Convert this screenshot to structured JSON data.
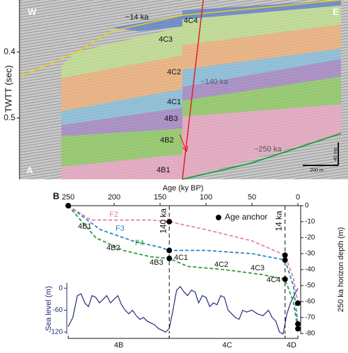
{
  "panel_a": {
    "label": "A",
    "west": "W",
    "east": "E",
    "y_label": "TWTT (sec)",
    "ylim": [
      0.321,
      0.593
    ],
    "yticks": [
      0.4,
      0.5
    ],
    "horizons": [
      "~14 ka",
      "~140 ka",
      "~250 ka"
    ],
    "units": [
      "4C4",
      "4C3",
      "4C2",
      "4C1",
      "4B3",
      "4B2",
      "4B1"
    ],
    "scale_bars": [
      "40 ms",
      "200 m"
    ]
  },
  "chart_data": {
    "type": "line",
    "label": "B",
    "x_label": "Age (ky BP)",
    "xlim": [
      250,
      0
    ],
    "xticks": [
      250,
      200,
      150,
      100,
      50,
      0
    ],
    "y_label": "250 ka horizon depth (m)",
    "ylim": [
      -80,
      0
    ],
    "yticks": [
      0,
      -10,
      -20,
      -30,
      -40,
      -50,
      -60,
      -70,
      -80
    ],
    "y2_label": "Sea level (m)",
    "y2lim": [
      -125,
      15
    ],
    "y2ticks": [
      0,
      -60,
      -120
    ],
    "series": [
      {
        "name": "F2",
        "color": "#ea7fae",
        "dashed": true,
        "x": [
          250,
          225,
          200,
          160,
          140,
          100,
          50,
          14,
          5,
          0
        ],
        "values": [
          0,
          -9,
          -9,
          -9,
          -10,
          -15,
          -22,
          -31,
          -45,
          -61
        ]
      },
      {
        "name": "F3",
        "color": "#2a86c0",
        "dashed": true,
        "x": [
          250,
          215,
          180,
          150,
          140,
          100,
          50,
          14,
          5,
          0
        ],
        "values": [
          0,
          -15,
          -22,
          -26,
          -28,
          -28,
          -30,
          -34,
          -50,
          -74
        ]
      },
      {
        "name": "F4",
        "color": "#2f9a45",
        "dashed": true,
        "x": [
          250,
          220,
          190,
          160,
          140,
          120,
          80,
          40,
          14,
          5,
          0
        ],
        "values": [
          0,
          -20,
          -28,
          -32,
          -33,
          -38,
          -40,
          -43,
          -46,
          -60,
          -77
        ]
      },
      {
        "name": "Age anchor",
        "color": "#000000",
        "markers": true,
        "x": [
          250,
          140,
          140,
          140,
          14,
          14,
          14,
          0,
          0,
          0
        ],
        "values": [
          0,
          -10,
          -28,
          -33,
          -31,
          -34,
          -46,
          -61,
          -74,
          -77
        ]
      },
      {
        "color": "#232a78",
        "axis": "y2",
        "x": [
          250,
          245,
          240,
          236,
          232,
          228,
          224,
          220,
          216,
          212,
          208,
          204,
          200,
          196,
          192,
          188,
          184,
          180,
          176,
          172,
          168,
          164,
          160,
          156,
          152,
          148,
          144,
          140,
          136,
          132,
          128,
          124,
          120,
          116,
          112,
          108,
          104,
          100,
          96,
          92,
          88,
          84,
          80,
          76,
          72,
          68,
          64,
          60,
          56,
          50,
          44,
          38,
          32,
          28,
          24,
          20,
          16,
          12,
          8,
          4,
          0
        ],
        "values": [
          -105,
          -80,
          -20,
          -15,
          -40,
          -50,
          -20,
          -25,
          -40,
          -30,
          -20,
          -40,
          -30,
          -20,
          -45,
          -60,
          -70,
          -60,
          -75,
          -85,
          -80,
          -90,
          -95,
          -100,
          -110,
          -115,
          -120,
          -110,
          -60,
          -5,
          5,
          -10,
          -20,
          -5,
          -10,
          -40,
          -20,
          -25,
          -50,
          -40,
          -45,
          -20,
          -25,
          -60,
          -70,
          -80,
          -85,
          -60,
          -65,
          -60,
          -70,
          -75,
          -60,
          -80,
          -90,
          -120,
          -125,
          -70,
          -40,
          -20,
          0
        ]
      }
    ],
    "markers": [
      {
        "x": 140,
        "label": "140 ka"
      },
      {
        "x": 14,
        "label": "14 ka"
      }
    ],
    "horizon_labels": [
      "4B1",
      "4B2",
      "4B3",
      "4C1",
      "4C2",
      "4C3",
      "4C4"
    ],
    "periods": [
      {
        "label": "4B",
        "start": 250,
        "end": 140
      },
      {
        "label": "4C",
        "start": 140,
        "end": 14
      },
      {
        "label": "4D",
        "start": 14,
        "end": 0
      }
    ]
  }
}
